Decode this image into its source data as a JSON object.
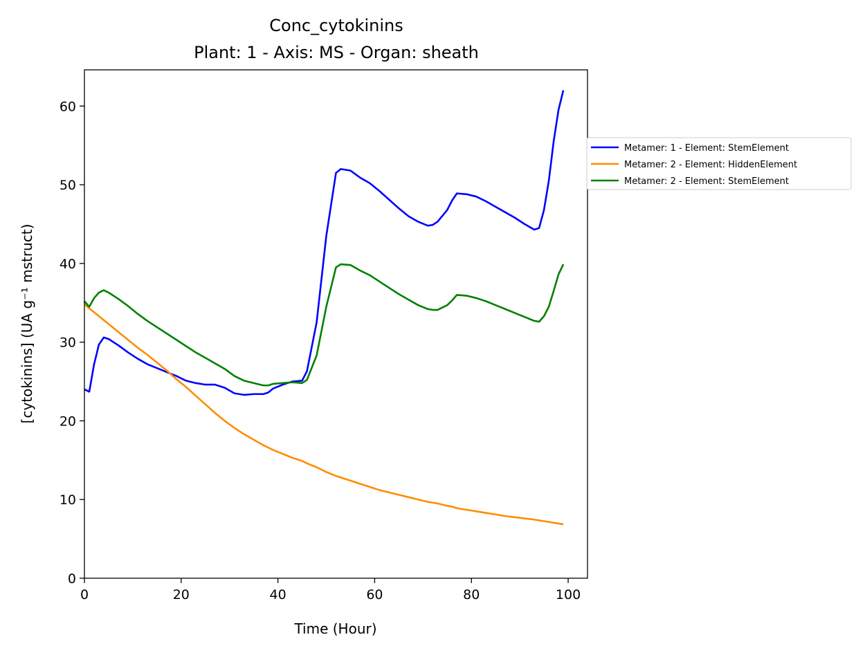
{
  "chart_data": {
    "type": "line",
    "title": "Conc_cytokinins",
    "subtitle": "Plant: 1 - Axis: MS - Organ: sheath",
    "x_label": "Time (Hour)",
    "y_label": "[cytokinins] (UA g⁻¹ mstruct)",
    "x": [
      0,
      1,
      2,
      3,
      4,
      5,
      7,
      9,
      11,
      13,
      15,
      17,
      19,
      21,
      23,
      25,
      27,
      29,
      31,
      33,
      35,
      37,
      38,
      39,
      41,
      43,
      45,
      46,
      48,
      50,
      52,
      53,
      55,
      57,
      59,
      61,
      63,
      65,
      67,
      69,
      71,
      72,
      73,
      75,
      76,
      77,
      79,
      81,
      83,
      85,
      87,
      89,
      91,
      93,
      94,
      95,
      96,
      97,
      98,
      99
    ],
    "series": [
      {
        "name": "Metamer: 1 - Element: StemElement",
        "color": "#0000ff",
        "values": [
          24.0,
          23.7,
          27.2,
          29.7,
          30.6,
          30.4,
          29.6,
          28.7,
          27.9,
          27.2,
          26.7,
          26.2,
          25.7,
          25.1,
          24.8,
          24.6,
          24.6,
          24.2,
          23.5,
          23.3,
          23.4,
          23.4,
          23.6,
          24.1,
          24.6,
          25.0,
          25.1,
          26.3,
          32.5,
          43.5,
          51.5,
          52.0,
          51.8,
          50.9,
          50.2,
          49.2,
          48.1,
          47.0,
          46.0,
          45.3,
          44.8,
          44.9,
          45.3,
          46.8,
          48.0,
          48.9,
          48.8,
          48.5,
          47.9,
          47.2,
          46.5,
          45.8,
          45.0,
          44.3,
          44.5,
          46.8,
          50.5,
          55.5,
          59.5,
          62.0
        ]
      },
      {
        "name": "Metamer: 2 - Element: HiddenElement",
        "color": "#ff8c00",
        "values": [
          34.8,
          34.3,
          33.8,
          33.3,
          32.8,
          32.3,
          31.3,
          30.3,
          29.3,
          28.4,
          27.4,
          26.4,
          25.3,
          24.3,
          23.2,
          22.1,
          21.0,
          20.0,
          19.1,
          18.3,
          17.6,
          16.9,
          16.6,
          16.3,
          15.8,
          15.3,
          14.9,
          14.6,
          14.1,
          13.5,
          13.0,
          12.8,
          12.4,
          12.0,
          11.6,
          11.2,
          10.9,
          10.6,
          10.3,
          10.0,
          9.7,
          9.6,
          9.5,
          9.2,
          9.1,
          8.9,
          8.7,
          8.5,
          8.3,
          8.1,
          7.9,
          7.75,
          7.6,
          7.45,
          7.35,
          7.25,
          7.15,
          7.05,
          6.95,
          6.85
        ]
      },
      {
        "name": "Metamer: 2 - Element: StemElement",
        "color": "#008000",
        "values": [
          35.2,
          34.5,
          35.6,
          36.3,
          36.6,
          36.3,
          35.5,
          34.6,
          33.6,
          32.7,
          31.9,
          31.1,
          30.3,
          29.5,
          28.7,
          28.0,
          27.3,
          26.6,
          25.7,
          25.1,
          24.8,
          24.5,
          24.5,
          24.7,
          24.8,
          24.9,
          24.8,
          25.2,
          28.3,
          34.5,
          39.5,
          39.9,
          39.8,
          39.1,
          38.5,
          37.7,
          36.9,
          36.1,
          35.4,
          34.7,
          34.2,
          34.1,
          34.1,
          34.7,
          35.3,
          36.0,
          35.9,
          35.6,
          35.2,
          34.7,
          34.2,
          33.7,
          33.2,
          32.7,
          32.6,
          33.3,
          34.5,
          36.5,
          38.6,
          39.9
        ]
      }
    ],
    "xlim": [
      0,
      104
    ],
    "xticks": [
      0,
      20,
      40,
      60,
      80,
      100
    ],
    "ylim": [
      0,
      64.6
    ],
    "yticks": [
      0,
      10,
      20,
      30,
      40,
      50,
      60
    ],
    "grid": false,
    "legend_loc": "right"
  }
}
